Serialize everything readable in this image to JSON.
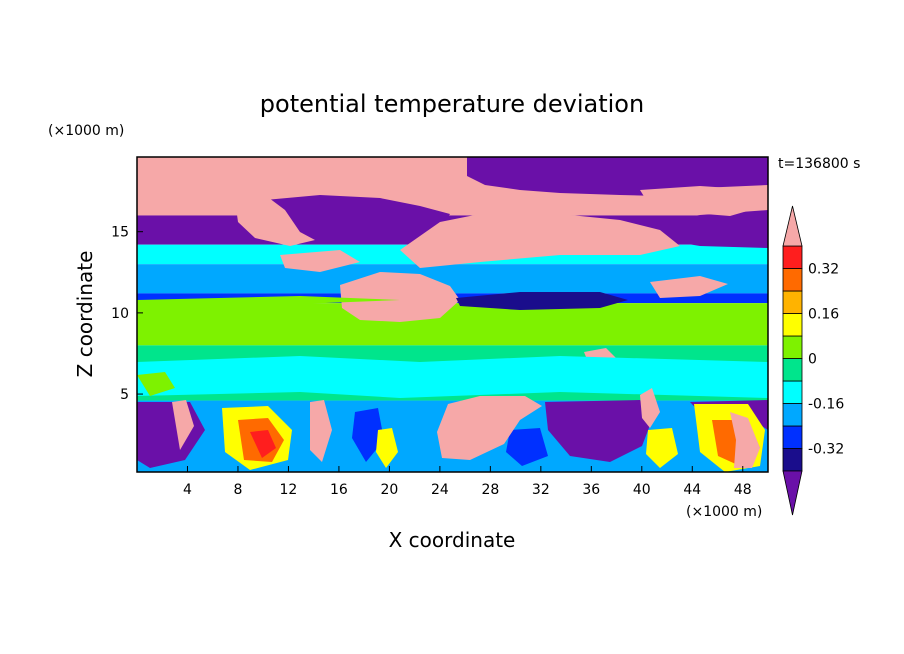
{
  "chart_data": {
    "type": "heatmap",
    "title": "potential temperature deviation",
    "xlabel": "X coordinate",
    "ylabel": "Z coordinate",
    "x_unit": "(×1000 m)",
    "y_unit": "(×1000 m)",
    "time_label": "t=136800 s",
    "xlim": [
      0,
      50
    ],
    "ylim": [
      0.2,
      19.6
    ],
    "x_ticks": [
      4,
      8,
      12,
      16,
      20,
      24,
      28,
      32,
      36,
      40,
      44,
      48
    ],
    "y_ticks": [
      5,
      10,
      15
    ],
    "colorbar": {
      "levels": [
        -0.4,
        -0.32,
        -0.24,
        -0.16,
        -0.08,
        0,
        0.08,
        0.16,
        0.24,
        0.32,
        0.4
      ],
      "labels": [
        "0.32",
        "0.16",
        "0",
        "-0.16",
        "-0.32"
      ],
      "label_values": [
        0.32,
        0.16,
        0,
        -0.16,
        -0.32
      ],
      "colors_low_to_high": [
        "#1a0d8c",
        "#0030ff",
        "#00a8ff",
        "#00ffff",
        "#00e58c",
        "#7ef200",
        "#ffff00",
        "#ffb300",
        "#ff6a00",
        "#ff1e1e"
      ],
      "under_color": "#6a10a8",
      "over_color": "#f6a8a8"
    },
    "bands_z": [
      {
        "z": [
          19.6,
          16.0
        ],
        "level": "mixed high/low"
      },
      {
        "z": [
          16.0,
          14.2
        ],
        "level": "under"
      },
      {
        "z": [
          14.2,
          13.0
        ],
        "level": -0.08
      },
      {
        "z": [
          13.0,
          11.2
        ],
        "level": -0.16
      },
      {
        "z": [
          11.2,
          10.6
        ],
        "level": -0.32
      },
      {
        "z": [
          10.6,
          8.0
        ],
        "level": 0.08
      },
      {
        "z": [
          8.0,
          4.6
        ],
        "level": 0.0
      },
      {
        "z": [
          4.6,
          0.2
        ],
        "level": "mixed high/low"
      }
    ]
  }
}
